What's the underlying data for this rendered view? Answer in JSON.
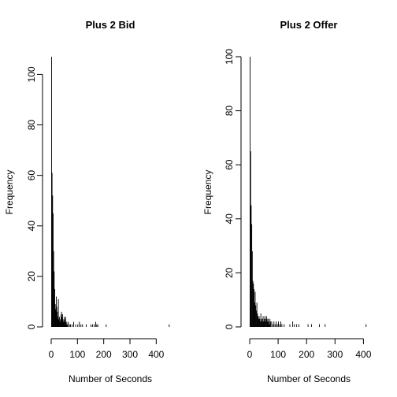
{
  "chart_data": [
    {
      "type": "bar",
      "title": "Plus 2 Bid",
      "xlabel": "Number of Seconds",
      "ylabel": "Frequency",
      "xlim": [
        0,
        450
      ],
      "ylim": [
        0,
        107
      ],
      "x_ticks": [
        0,
        100,
        200,
        300,
        400
      ],
      "y_ticks": [
        0,
        20,
        40,
        60,
        80,
        100
      ],
      "bin_width": 2,
      "bins": [
        {
          "x": 0,
          "y": 107
        },
        {
          "x": 2,
          "y": 61
        },
        {
          "x": 4,
          "y": 52
        },
        {
          "x": 6,
          "y": 45
        },
        {
          "x": 8,
          "y": 30
        },
        {
          "x": 10,
          "y": 22
        },
        {
          "x": 12,
          "y": 15
        },
        {
          "x": 14,
          "y": 9
        },
        {
          "x": 16,
          "y": 7
        },
        {
          "x": 18,
          "y": 12
        },
        {
          "x": 20,
          "y": 8
        },
        {
          "x": 22,
          "y": 6
        },
        {
          "x": 24,
          "y": 4
        },
        {
          "x": 26,
          "y": 11
        },
        {
          "x": 28,
          "y": 3
        },
        {
          "x": 30,
          "y": 4
        },
        {
          "x": 32,
          "y": 2
        },
        {
          "x": 34,
          "y": 3
        },
        {
          "x": 36,
          "y": 5
        },
        {
          "x": 38,
          "y": 6
        },
        {
          "x": 40,
          "y": 4
        },
        {
          "x": 42,
          "y": 5
        },
        {
          "x": 44,
          "y": 3
        },
        {
          "x": 46,
          "y": 2
        },
        {
          "x": 48,
          "y": 4
        },
        {
          "x": 50,
          "y": 3
        },
        {
          "x": 52,
          "y": 2
        },
        {
          "x": 54,
          "y": 4
        },
        {
          "x": 56,
          "y": 1
        },
        {
          "x": 58,
          "y": 2
        },
        {
          "x": 60,
          "y": 1
        },
        {
          "x": 64,
          "y": 2
        },
        {
          "x": 68,
          "y": 1
        },
        {
          "x": 72,
          "y": 1
        },
        {
          "x": 78,
          "y": 1
        },
        {
          "x": 84,
          "y": 2
        },
        {
          "x": 92,
          "y": 1
        },
        {
          "x": 100,
          "y": 1
        },
        {
          "x": 106,
          "y": 2
        },
        {
          "x": 112,
          "y": 1
        },
        {
          "x": 118,
          "y": 1
        },
        {
          "x": 132,
          "y": 1
        },
        {
          "x": 150,
          "y": 1
        },
        {
          "x": 156,
          "y": 1
        },
        {
          "x": 162,
          "y": 1
        },
        {
          "x": 168,
          "y": 2
        },
        {
          "x": 172,
          "y": 1
        },
        {
          "x": 176,
          "y": 1
        },
        {
          "x": 208,
          "y": 1
        },
        {
          "x": 448,
          "y": 1
        }
      ]
    },
    {
      "type": "bar",
      "title": "Plus 2 Offer",
      "xlabel": "Number of Seconds",
      "ylabel": "Frequency",
      "xlim": [
        0,
        410
      ],
      "ylim": [
        0,
        100
      ],
      "x_ticks": [
        0,
        100,
        200,
        300,
        400
      ],
      "y_ticks": [
        0,
        20,
        40,
        60,
        80,
        100
      ],
      "bin_width": 2,
      "bins": [
        {
          "x": 0,
          "y": 100
        },
        {
          "x": 2,
          "y": 65
        },
        {
          "x": 4,
          "y": 45
        },
        {
          "x": 6,
          "y": 38
        },
        {
          "x": 8,
          "y": 28
        },
        {
          "x": 10,
          "y": 17
        },
        {
          "x": 12,
          "y": 16
        },
        {
          "x": 14,
          "y": 14
        },
        {
          "x": 16,
          "y": 9
        },
        {
          "x": 18,
          "y": 13
        },
        {
          "x": 20,
          "y": 8
        },
        {
          "x": 22,
          "y": 6
        },
        {
          "x": 24,
          "y": 9
        },
        {
          "x": 26,
          "y": 5
        },
        {
          "x": 28,
          "y": 4
        },
        {
          "x": 30,
          "y": 3
        },
        {
          "x": 32,
          "y": 4
        },
        {
          "x": 34,
          "y": 3
        },
        {
          "x": 36,
          "y": 2
        },
        {
          "x": 38,
          "y": 5
        },
        {
          "x": 40,
          "y": 3
        },
        {
          "x": 42,
          "y": 2
        },
        {
          "x": 44,
          "y": 3
        },
        {
          "x": 46,
          "y": 4
        },
        {
          "x": 48,
          "y": 2
        },
        {
          "x": 50,
          "y": 3
        },
        {
          "x": 52,
          "y": 4
        },
        {
          "x": 54,
          "y": 2
        },
        {
          "x": 56,
          "y": 3
        },
        {
          "x": 58,
          "y": 4
        },
        {
          "x": 60,
          "y": 3
        },
        {
          "x": 62,
          "y": 2
        },
        {
          "x": 64,
          "y": 3
        },
        {
          "x": 66,
          "y": 2
        },
        {
          "x": 68,
          "y": 1
        },
        {
          "x": 70,
          "y": 3
        },
        {
          "x": 72,
          "y": 2
        },
        {
          "x": 76,
          "y": 2
        },
        {
          "x": 80,
          "y": 1
        },
        {
          "x": 84,
          "y": 2
        },
        {
          "x": 88,
          "y": 1
        },
        {
          "x": 92,
          "y": 2
        },
        {
          "x": 96,
          "y": 1
        },
        {
          "x": 100,
          "y": 2
        },
        {
          "x": 104,
          "y": 1
        },
        {
          "x": 108,
          "y": 2
        },
        {
          "x": 112,
          "y": 1
        },
        {
          "x": 120,
          "y": 1
        },
        {
          "x": 140,
          "y": 1
        },
        {
          "x": 150,
          "y": 2
        },
        {
          "x": 156,
          "y": 1
        },
        {
          "x": 164,
          "y": 1
        },
        {
          "x": 172,
          "y": 1
        },
        {
          "x": 204,
          "y": 1
        },
        {
          "x": 216,
          "y": 1
        },
        {
          "x": 244,
          "y": 1
        },
        {
          "x": 264,
          "y": 1
        },
        {
          "x": 408,
          "y": 1
        }
      ]
    }
  ]
}
